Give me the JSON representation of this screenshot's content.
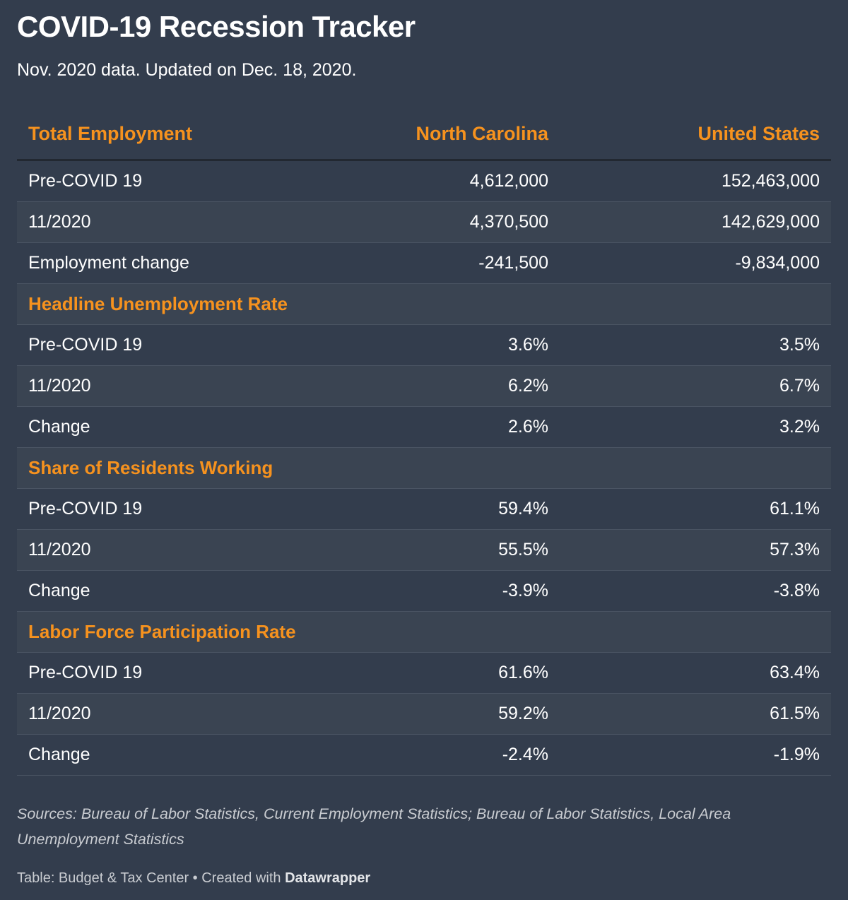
{
  "title": "COVID-19 Recession Tracker",
  "subtitle": "Nov. 2020 data. Updated on Dec. 18, 2020.",
  "colors": {
    "background": "#333d4d",
    "accent": "#f6921e",
    "alt_row": "#3a4452"
  },
  "chart_data": {
    "type": "table",
    "columns": [
      "Total Employment",
      "North Carolina",
      "United States"
    ],
    "sections": [
      {
        "name": "Total Employment",
        "rows": [
          {
            "label": "Pre-COVID 19",
            "nc": "4,612,000",
            "us": "152,463,000"
          },
          {
            "label": "11/2020",
            "nc": "4,370,500",
            "us": "142,629,000"
          },
          {
            "label": "Employment change",
            "nc": "-241,500",
            "us": "-9,834,000"
          }
        ]
      },
      {
        "name": "Headline Unemployment Rate",
        "rows": [
          {
            "label": "Pre-COVID 19",
            "nc": "3.6%",
            "us": "3.5%"
          },
          {
            "label": "11/2020",
            "nc": "6.2%",
            "us": "6.7%"
          },
          {
            "label": "Change",
            "nc": "2.6%",
            "us": "3.2%"
          }
        ]
      },
      {
        "name": "Share of Residents Working",
        "rows": [
          {
            "label": "Pre-COVID 19",
            "nc": "59.4%",
            "us": "61.1%"
          },
          {
            "label": "11/2020",
            "nc": "55.5%",
            "us": "57.3%"
          },
          {
            "label": "Change",
            "nc": "-3.9%",
            "us": "-3.8%"
          }
        ]
      },
      {
        "name": "Labor Force Participation Rate",
        "rows": [
          {
            "label": "Pre-COVID 19",
            "nc": "61.6%",
            "us": "63.4%"
          },
          {
            "label": "11/2020",
            "nc": "59.2%",
            "us": "61.5%"
          },
          {
            "label": "Change",
            "nc": "-2.4%",
            "us": "-1.9%"
          }
        ]
      }
    ]
  },
  "footer": {
    "sources": "Sources: Bureau of Labor Statistics, Current Employment Statistics; Bureau of Labor Statistics, Local Area Unemployment Statistics",
    "credit_prefix": "Table: Budget & Tax Center • Created with ",
    "credit_brand": "Datawrapper"
  }
}
